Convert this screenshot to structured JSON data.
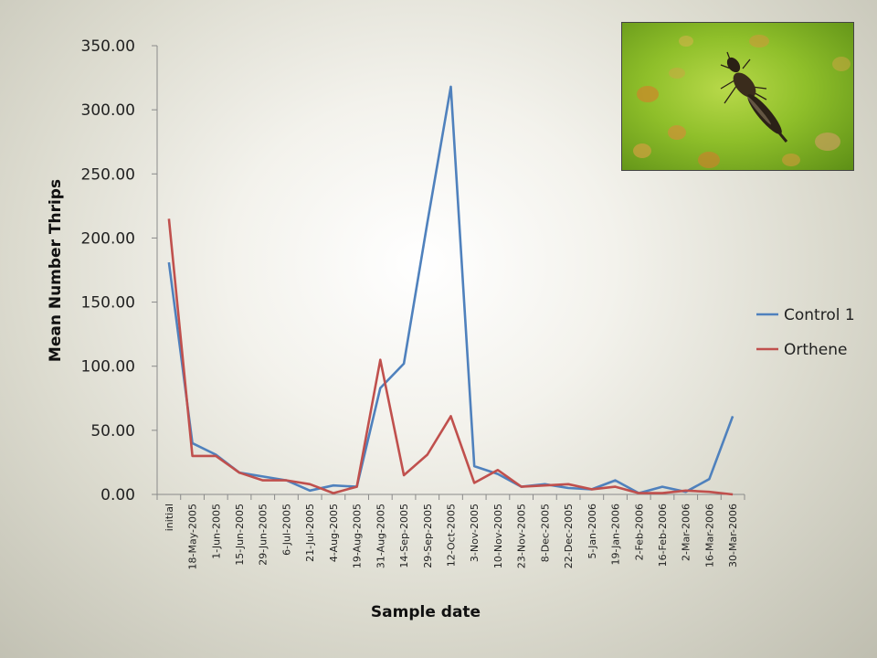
{
  "chart_data": {
    "type": "line",
    "title": "",
    "xlabel": "Sample date",
    "ylabel": "Mean Number Thrips",
    "ylim": [
      0,
      350
    ],
    "yticks": [
      "0.00",
      "50.00",
      "100.00",
      "150.00",
      "200.00",
      "250.00",
      "300.00",
      "350.00"
    ],
    "categories": [
      "initial",
      "18-May-2005",
      "1-Jun-2005",
      "15-Jun-2005",
      "29-Jun-2005",
      "6-Jul-2005",
      "21-Jul-2005",
      "4-Aug-2005",
      "19-Aug-2005",
      "31-Aug-2005",
      "14-Sep-2005",
      "29-Sep-2005",
      "12-Oct-2005",
      "3-Nov-2005",
      "10-Nov-2005",
      "23-Nov-2005",
      "8-Dec-2005",
      "22-Dec-2005",
      "5-Jan-2006",
      "19-Jan-2006",
      "2-Feb-2006",
      "16-Feb-2006",
      "2-Mar-2006",
      "16-Mar-2006",
      "30-Mar-2006"
    ],
    "series": [
      {
        "name": "Control 1",
        "color": "#4f81bd",
        "values": [
          181,
          40,
          31,
          17,
          14,
          11,
          3,
          7,
          6,
          83,
          102,
          212,
          318,
          22,
          16,
          6,
          8,
          5,
          4,
          11,
          1,
          6,
          2,
          12,
          61
        ]
      },
      {
        "name": "Orthene",
        "color": "#c0504d",
        "values": [
          215,
          30,
          30,
          17,
          11,
          11,
          8,
          1,
          6,
          105,
          15,
          31,
          61,
          9,
          19,
          6,
          7,
          8,
          4,
          6,
          1,
          1,
          3,
          2,
          0
        ]
      }
    ],
    "legend_position": "right",
    "grid": false
  },
  "photo": {
    "subject": "thrips-insect-on-leaf"
  }
}
